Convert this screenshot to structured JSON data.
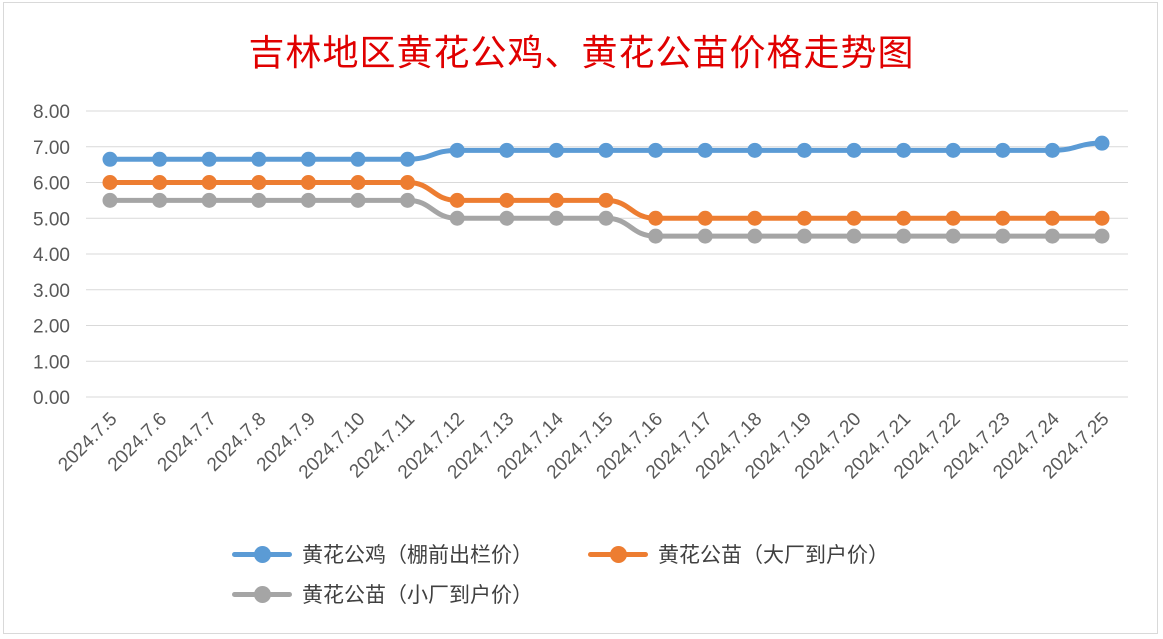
{
  "chart_data": {
    "type": "line",
    "title": "吉林地区黄花公鸡、黄花公苗价格走势图",
    "categories": [
      "2024.7.5",
      "2024.7.6",
      "2024.7.7",
      "2024.7.8",
      "2024.7.9",
      "2024.7.10",
      "2024.7.11",
      "2024.7.12",
      "2024.7.13",
      "2024.7.14",
      "2024.7.15",
      "2024.7.16",
      "2024.7.17",
      "2024.7.18",
      "2024.7.19",
      "2024.7.20",
      "2024.7.21",
      "2024.7.22",
      "2024.7.23",
      "2024.7.24",
      "2024.7.25"
    ],
    "ylim": [
      0,
      8
    ],
    "yticks": [
      "0.00",
      "1.00",
      "2.00",
      "3.00",
      "4.00",
      "5.00",
      "6.00",
      "7.00",
      "8.00"
    ],
    "grid": true,
    "legend_position": "bottom",
    "series": [
      {
        "name": "黄花公鸡（棚前出栏价）",
        "color": "#5b9bd5",
        "values": [
          6.65,
          6.65,
          6.65,
          6.65,
          6.65,
          6.65,
          6.65,
          6.9,
          6.9,
          6.9,
          6.9,
          6.9,
          6.9,
          6.9,
          6.9,
          6.9,
          6.9,
          6.9,
          6.9,
          6.9,
          7.1
        ]
      },
      {
        "name": "黄花公苗（大厂到户价）",
        "color": "#ed7d31",
        "values": [
          6.0,
          6.0,
          6.0,
          6.0,
          6.0,
          6.0,
          6.0,
          5.5,
          5.5,
          5.5,
          5.5,
          5.0,
          5.0,
          5.0,
          5.0,
          5.0,
          5.0,
          5.0,
          5.0,
          5.0,
          5.0
        ]
      },
      {
        "name": "黄花公苗（小厂到户价）",
        "color": "#a5a5a5",
        "values": [
          5.5,
          5.5,
          5.5,
          5.5,
          5.5,
          5.5,
          5.5,
          5.0,
          5.0,
          5.0,
          5.0,
          4.5,
          4.5,
          4.5,
          4.5,
          4.5,
          4.5,
          4.5,
          4.5,
          4.5,
          4.5
        ]
      }
    ]
  }
}
